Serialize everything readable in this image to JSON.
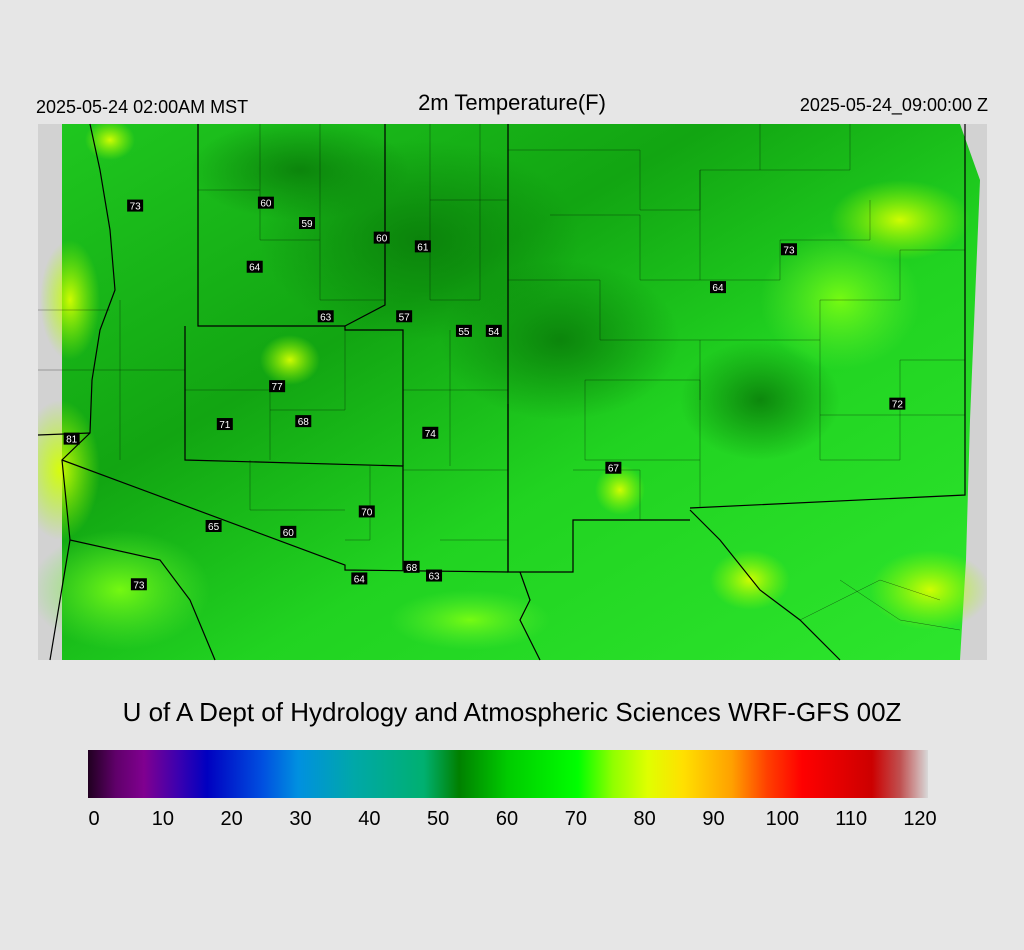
{
  "header": {
    "left": "2025-05-24 02:00AM MST",
    "title": "2m Temperature(F)",
    "right": "2025-05-24_09:00:00 Z"
  },
  "credit": "U of A Dept of Hydrology and Atmospheric Sciences WRF-GFS 00Z",
  "colorbar": {
    "ticks": [
      "0",
      "10",
      "20",
      "30",
      "40",
      "50",
      "60",
      "70",
      "80",
      "90",
      "100",
      "110",
      "120"
    ],
    "stops": [
      {
        "v": 0,
        "c": "#200020"
      },
      {
        "v": 4,
        "c": "#60006a"
      },
      {
        "v": 8,
        "c": "#800090"
      },
      {
        "v": 13,
        "c": "#3a00b0"
      },
      {
        "v": 17,
        "c": "#0000c0"
      },
      {
        "v": 25,
        "c": "#0050e0"
      },
      {
        "v": 30,
        "c": "#0090e0"
      },
      {
        "v": 38,
        "c": "#00a8a8"
      },
      {
        "v": 48,
        "c": "#00b070"
      },
      {
        "v": 53,
        "c": "#008000"
      },
      {
        "v": 60,
        "c": "#00cc00"
      },
      {
        "v": 70,
        "c": "#00ff00"
      },
      {
        "v": 75,
        "c": "#90ff00"
      },
      {
        "v": 80,
        "c": "#e0ff00"
      },
      {
        "v": 85,
        "c": "#ffe000"
      },
      {
        "v": 92,
        "c": "#ffa000"
      },
      {
        "v": 97,
        "c": "#ff4000"
      },
      {
        "v": 102,
        "c": "#ff0000"
      },
      {
        "v": 112,
        "c": "#cc0000"
      },
      {
        "v": 116,
        "c": "#c05050"
      },
      {
        "v": 120,
        "c": "#d8d8d8"
      }
    ]
  },
  "stations": [
    {
      "label": "73",
      "x": -117.0,
      "y": 44.8
    },
    {
      "label": "60",
      "x": -113.5,
      "y": 44.9
    },
    {
      "label": "59",
      "x": -112.4,
      "y": 44.2
    },
    {
      "label": "60",
      "x": -110.4,
      "y": 43.7
    },
    {
      "label": "61",
      "x": -109.3,
      "y": 43.4
    },
    {
      "label": "64",
      "x": -113.8,
      "y": 42.7
    },
    {
      "label": "63",
      "x": -111.9,
      "y": 41.0
    },
    {
      "label": "57",
      "x": -109.8,
      "y": 41.0
    },
    {
      "label": "55",
      "x": -108.2,
      "y": 40.5
    },
    {
      "label": "54",
      "x": -107.4,
      "y": 40.5
    },
    {
      "label": "77",
      "x": -113.2,
      "y": 38.6
    },
    {
      "label": "71",
      "x": -114.6,
      "y": 37.3
    },
    {
      "label": "68",
      "x": -112.5,
      "y": 37.4
    },
    {
      "label": "74",
      "x": -109.1,
      "y": 37.0
    },
    {
      "label": "81",
      "x": -118.7,
      "y": 36.8
    },
    {
      "label": "70",
      "x": -110.8,
      "y": 34.3
    },
    {
      "label": "65",
      "x": -114.9,
      "y": 33.8
    },
    {
      "label": "60",
      "x": -112.9,
      "y": 33.6
    },
    {
      "label": "68",
      "x": -109.6,
      "y": 32.4
    },
    {
      "label": "64",
      "x": -111.0,
      "y": 32.0
    },
    {
      "label": "63",
      "x": -109.0,
      "y": 32.1
    },
    {
      "label": "73",
      "x": -116.9,
      "y": 31.8
    },
    {
      "label": "73",
      "x": -99.5,
      "y": 43.3
    },
    {
      "label": "64",
      "x": -101.4,
      "y": 42.0
    },
    {
      "label": "67",
      "x": -104.2,
      "y": 35.8
    },
    {
      "label": "72",
      "x": -96.6,
      "y": 38.0
    }
  ]
}
